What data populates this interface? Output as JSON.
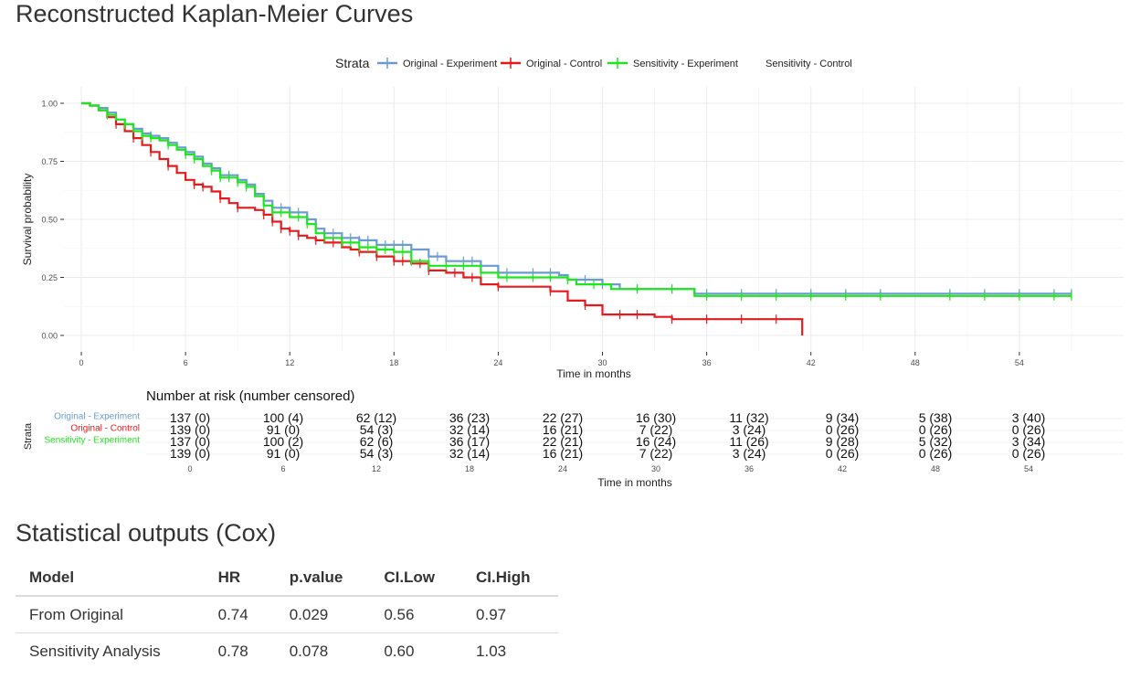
{
  "page": {
    "title": "Reconstructed Kaplan-Meier Curves",
    "stats_title": "Statistical outputs (Cox)"
  },
  "chart_data": {
    "type": "line",
    "step": true,
    "legend_title": "Strata",
    "legend_position": "top",
    "xlabel": "Time in months",
    "ylabel": "Survival probability",
    "xlim": [
      -1,
      60
    ],
    "ylim": [
      0,
      1
    ],
    "x_ticks": [
      0,
      6,
      12,
      18,
      24,
      30,
      36,
      42,
      48,
      54
    ],
    "y_ticks": [
      0.0,
      0.25,
      0.5,
      0.75,
      1.0
    ],
    "y_tick_labels": [
      "0.00",
      "0.25",
      "0.50",
      "0.75",
      "1.00"
    ],
    "grid": true,
    "series": [
      {
        "name": "Original - Experiment",
        "color": "#6a9bd1",
        "points": [
          [
            0,
            1.0
          ],
          [
            0.5,
            0.99
          ],
          [
            1,
            0.98
          ],
          [
            1.5,
            0.96
          ],
          [
            2,
            0.93
          ],
          [
            2.5,
            0.91
          ],
          [
            3,
            0.89
          ],
          [
            3.5,
            0.87
          ],
          [
            4,
            0.86
          ],
          [
            4.5,
            0.85
          ],
          [
            5,
            0.83
          ],
          [
            5.5,
            0.81
          ],
          [
            6,
            0.79
          ],
          [
            6.5,
            0.77
          ],
          [
            7,
            0.74
          ],
          [
            7.5,
            0.72
          ],
          [
            8,
            0.69
          ],
          [
            9,
            0.67
          ],
          [
            9.5,
            0.65
          ],
          [
            10,
            0.61
          ],
          [
            10.5,
            0.58
          ],
          [
            11,
            0.55
          ],
          [
            12,
            0.53
          ],
          [
            13,
            0.5
          ],
          [
            13.5,
            0.46
          ],
          [
            14,
            0.44
          ],
          [
            15,
            0.42
          ],
          [
            16,
            0.41
          ],
          [
            17,
            0.39
          ],
          [
            18,
            0.39
          ],
          [
            19,
            0.37
          ],
          [
            20,
            0.34
          ],
          [
            21,
            0.32
          ],
          [
            22.5,
            0.32
          ],
          [
            23,
            0.3
          ],
          [
            24,
            0.27
          ],
          [
            27.5,
            0.26
          ],
          [
            28,
            0.24
          ],
          [
            30,
            0.22
          ],
          [
            31,
            0.2
          ],
          [
            35,
            0.2
          ],
          [
            35.3,
            0.18
          ],
          [
            57,
            0.18
          ]
        ],
        "censor_x": [
          1.5,
          2.5,
          3.5,
          4,
          5,
          6,
          6.5,
          7.5,
          8,
          8.5,
          9,
          9.5,
          10.5,
          11,
          11.5,
          12.5,
          13,
          14,
          14.5,
          15,
          15.5,
          16,
          16.5,
          17,
          17.5,
          18,
          18.5,
          19,
          20,
          20.5,
          21,
          22,
          22.5,
          23,
          24.5,
          26,
          27,
          28,
          29,
          30,
          32,
          34,
          36,
          38,
          40,
          42,
          44,
          46,
          50,
          52,
          54,
          56,
          57
        ]
      },
      {
        "name": "Original - Control",
        "color": "#e41a1c",
        "points": [
          [
            0,
            1.0
          ],
          [
            0.5,
            0.99
          ],
          [
            1,
            0.97
          ],
          [
            1.5,
            0.94
          ],
          [
            2,
            0.91
          ],
          [
            2.5,
            0.88
          ],
          [
            3,
            0.85
          ],
          [
            3.5,
            0.82
          ],
          [
            4,
            0.79
          ],
          [
            4.5,
            0.76
          ],
          [
            5,
            0.73
          ],
          [
            5.5,
            0.7
          ],
          [
            6,
            0.67
          ],
          [
            6.5,
            0.65
          ],
          [
            7,
            0.64
          ],
          [
            7.5,
            0.62
          ],
          [
            8,
            0.59
          ],
          [
            8.5,
            0.57
          ],
          [
            9,
            0.55
          ],
          [
            10,
            0.54
          ],
          [
            10.5,
            0.52
          ],
          [
            11,
            0.49
          ],
          [
            11.5,
            0.46
          ],
          [
            12,
            0.45
          ],
          [
            12.5,
            0.43
          ],
          [
            13,
            0.42
          ],
          [
            13.5,
            0.41
          ],
          [
            14,
            0.4
          ],
          [
            15,
            0.38
          ],
          [
            15.5,
            0.37
          ],
          [
            16,
            0.36
          ],
          [
            17,
            0.34
          ],
          [
            18,
            0.32
          ],
          [
            19,
            0.31
          ],
          [
            20,
            0.28
          ],
          [
            21,
            0.27
          ],
          [
            22,
            0.25
          ],
          [
            23,
            0.22
          ],
          [
            24,
            0.21
          ],
          [
            26,
            0.21
          ],
          [
            27,
            0.19
          ],
          [
            28,
            0.15
          ],
          [
            29,
            0.13
          ],
          [
            30,
            0.09
          ],
          [
            31,
            0.09
          ],
          [
            33,
            0.08
          ],
          [
            34,
            0.07
          ],
          [
            41.5,
            0.07
          ],
          [
            41.5,
            0.0
          ]
        ],
        "censor_x": [
          2,
          3,
          4,
          5,
          6.5,
          7,
          8,
          9,
          10.5,
          11,
          11.5,
          12,
          12.5,
          13.5,
          14.5,
          16,
          17,
          18,
          18.5,
          19.5,
          20,
          21.5,
          22.5,
          24,
          27,
          29,
          31,
          32,
          34,
          36,
          38,
          40
        ]
      },
      {
        "name": "Sensitivity - Experiment",
        "color": "#1ee61e",
        "points": [
          [
            0,
            1.0
          ],
          [
            0.5,
            0.99
          ],
          [
            1,
            0.97
          ],
          [
            1.5,
            0.95
          ],
          [
            2,
            0.93
          ],
          [
            2.5,
            0.91
          ],
          [
            3,
            0.88
          ],
          [
            3.5,
            0.86
          ],
          [
            4,
            0.85
          ],
          [
            4.5,
            0.84
          ],
          [
            5,
            0.82
          ],
          [
            5.5,
            0.8
          ],
          [
            6,
            0.78
          ],
          [
            6.5,
            0.76
          ],
          [
            7,
            0.73
          ],
          [
            7.5,
            0.71
          ],
          [
            8,
            0.68
          ],
          [
            9,
            0.66
          ],
          [
            9.5,
            0.64
          ],
          [
            10,
            0.6
          ],
          [
            10.5,
            0.56
          ],
          [
            11,
            0.53
          ],
          [
            12,
            0.51
          ],
          [
            13,
            0.48
          ],
          [
            13.5,
            0.44
          ],
          [
            14,
            0.42
          ],
          [
            15,
            0.4
          ],
          [
            16,
            0.38
          ],
          [
            17,
            0.37
          ],
          [
            18,
            0.36
          ],
          [
            19,
            0.32
          ],
          [
            20,
            0.3
          ],
          [
            21,
            0.3
          ],
          [
            23,
            0.27
          ],
          [
            24,
            0.25
          ],
          [
            28,
            0.24
          ],
          [
            28.5,
            0.22
          ],
          [
            30,
            0.22
          ],
          [
            30.5,
            0.2
          ],
          [
            35,
            0.2
          ],
          [
            35.3,
            0.17
          ],
          [
            57,
            0.17
          ]
        ],
        "censor_x": [
          1.5,
          2.5,
          3.5,
          4,
          5,
          6,
          6.5,
          7.5,
          8,
          8.5,
          9,
          9.5,
          10.5,
          11,
          11.5,
          12.5,
          13,
          14,
          15,
          15.5,
          16,
          16.5,
          17,
          17.5,
          18,
          18.5,
          19,
          20,
          21,
          22,
          23,
          24.5,
          26,
          27,
          28,
          29.5,
          32,
          34,
          36,
          38,
          40,
          42,
          44,
          46,
          50,
          52,
          54,
          56,
          57
        ]
      },
      {
        "name": "Sensitivity - Control",
        "color": "#e41a1c",
        "draw": false
      }
    ]
  },
  "risk_table": {
    "title": "Number at risk (number censored)",
    "y_title": "Strata",
    "xlabel": "Time in months",
    "times": [
      0,
      6,
      12,
      18,
      24,
      30,
      36,
      42,
      48,
      54
    ],
    "rows": [
      {
        "label": "Original - Experiment",
        "color": "#6a9bd1",
        "values": [
          "137 (0)",
          "100 (4)",
          "62 (12)",
          "36 (23)",
          "22 (27)",
          "16 (30)",
          "11 (32)",
          "9 (34)",
          "5 (38)",
          "3 (40)"
        ]
      },
      {
        "label": "Original - Control",
        "color": "#e41a1c",
        "values": [
          "139 (0)",
          "91 (0)",
          "54 (3)",
          "32 (14)",
          "16 (21)",
          "7 (22)",
          "3 (24)",
          "0 (26)",
          "0 (26)",
          "0 (26)"
        ]
      },
      {
        "label": "Sensitivity - Experiment",
        "color": "#1ee61e",
        "values": [
          "137 (0)",
          "100 (2)",
          "62 (6)",
          "36 (17)",
          "22 (21)",
          "16 (24)",
          "11 (26)",
          "9 (28)",
          "5 (32)",
          "3 (34)"
        ]
      },
      {
        "label": "",
        "color": "#000000",
        "values": [
          "139 (0)",
          "91 (0)",
          "54 (3)",
          "32 (14)",
          "16 (21)",
          "7 (22)",
          "3 (24)",
          "0 (26)",
          "0 (26)",
          "0 (26)"
        ]
      }
    ]
  },
  "stats_table": {
    "headers": [
      "Model",
      "HR",
      "p.value",
      "CI.Low",
      "CI.High"
    ],
    "rows": [
      [
        "From Original",
        "0.74",
        "0.029",
        "0.56",
        "0.97"
      ],
      [
        "Sensitivity Analysis",
        "0.78",
        "0.078",
        "0.60",
        "1.03"
      ]
    ]
  }
}
